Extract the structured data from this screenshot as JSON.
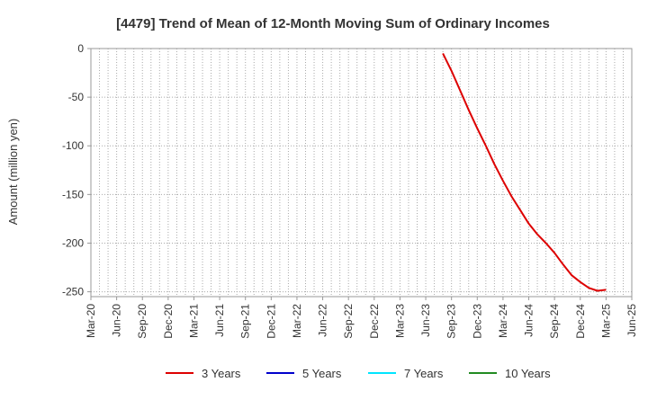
{
  "chart_data": {
    "type": "line",
    "title": "[4479]  Trend of Mean of 12-Month Moving Sum of Ordinary Incomes",
    "ylabel": "Amount (million yen)",
    "xlabel": "",
    "ylim": [
      -255,
      0
    ],
    "yticks": [
      0,
      -50,
      -100,
      -150,
      -200,
      -250
    ],
    "xrange": [
      "2020-03",
      "2025-06"
    ],
    "xticks": [
      "Mar-20",
      "Jun-20",
      "Sep-20",
      "Dec-20",
      "Mar-21",
      "Jun-21",
      "Sep-21",
      "Dec-21",
      "Mar-22",
      "Jun-22",
      "Sep-22",
      "Dec-22",
      "Mar-23",
      "Jun-23",
      "Sep-23",
      "Dec-23",
      "Mar-24",
      "Jun-24",
      "Sep-24",
      "Dec-24",
      "Mar-25",
      "Jun-25"
    ],
    "grid": true,
    "legend_position": "bottom",
    "series": [
      {
        "name": "3 Years",
        "color": "#dd0000",
        "x": [
          "2023-08",
          "2023-09",
          "2023-10",
          "2023-11",
          "2023-12",
          "2024-01",
          "2024-02",
          "2024-03",
          "2024-04",
          "2024-05",
          "2024-06",
          "2024-07",
          "2024-08",
          "2024-09",
          "2024-10",
          "2024-11",
          "2024-12",
          "2025-01",
          "2025-02",
          "2025-03"
        ],
        "values": [
          -5,
          -23,
          -43,
          -63,
          -82,
          -100,
          -119,
          -136,
          -152,
          -166,
          -180,
          -191,
          -200,
          -210,
          -222,
          -233,
          -240,
          -246,
          -249,
          -248
        ]
      },
      {
        "name": "5 Years",
        "color": "#0000cc",
        "x": [],
        "values": []
      },
      {
        "name": "7 Years",
        "color": "#00e5ff",
        "x": [],
        "values": []
      },
      {
        "name": "10 Years",
        "color": "#228b22",
        "x": [],
        "values": []
      }
    ]
  }
}
